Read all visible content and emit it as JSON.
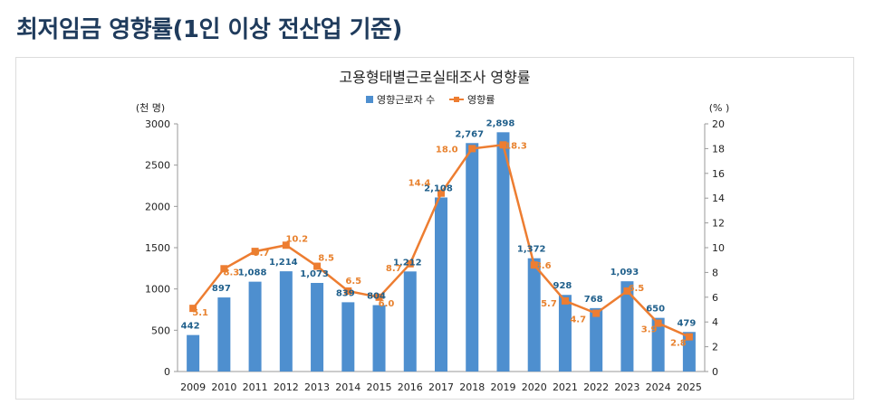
{
  "page": {
    "title": "최저임금 영향률(1인 이상 전산업 기준)"
  },
  "chart_data": {
    "type": "bar",
    "title": "고용형태별근로실태조사 영향률",
    "categories": [
      "2009",
      "2010",
      "2011",
      "2012",
      "2013",
      "2014",
      "2015",
      "2016",
      "2017",
      "2018",
      "2019",
      "2020",
      "2021",
      "2022",
      "2023",
      "2024",
      "2025"
    ],
    "series": [
      {
        "name": "영향근로자 수",
        "type": "bar",
        "axis": "left",
        "color": "#4e8fcf",
        "values": [
          442,
          897,
          1088,
          1214,
          1073,
          839,
          804,
          1212,
          2108,
          2767,
          2898,
          1372,
          928,
          768,
          1093,
          650,
          479
        ],
        "labels": [
          "442",
          "897",
          "1,088",
          "1,214",
          "1,073",
          "839",
          "804",
          "1,212",
          "2,108",
          "2,767",
          "2,898",
          "1,372",
          "928",
          "768",
          "1,093",
          "650",
          "479"
        ]
      },
      {
        "name": "영향률",
        "type": "line",
        "axis": "right",
        "color": "#ed7d31",
        "values": [
          5.1,
          8.3,
          9.7,
          10.2,
          8.5,
          6.5,
          6.0,
          8.7,
          14.4,
          18.0,
          18.3,
          8.6,
          5.7,
          4.7,
          6.5,
          3.9,
          2.8
        ],
        "labels": [
          "5.1",
          "8.3",
          "9.7",
          "10.2",
          "8.5",
          "6.5",
          "6.0",
          "8.7",
          "14.4",
          "18.0",
          "18.3",
          "8.6",
          "5.7",
          "4.7",
          "6.5",
          "3.9",
          "2.8"
        ]
      }
    ],
    "left_axis": {
      "unit_label": "(천 명)",
      "ylim": [
        0,
        3000
      ],
      "ticks": [
        0,
        500,
        1000,
        1500,
        2000,
        2500,
        3000
      ]
    },
    "right_axis": {
      "unit_label": "(% )",
      "ylim": [
        0,
        20
      ],
      "ticks": [
        0,
        2,
        4,
        6,
        8,
        10,
        12,
        14,
        16,
        18,
        20
      ]
    },
    "legend_position": "top-center"
  }
}
